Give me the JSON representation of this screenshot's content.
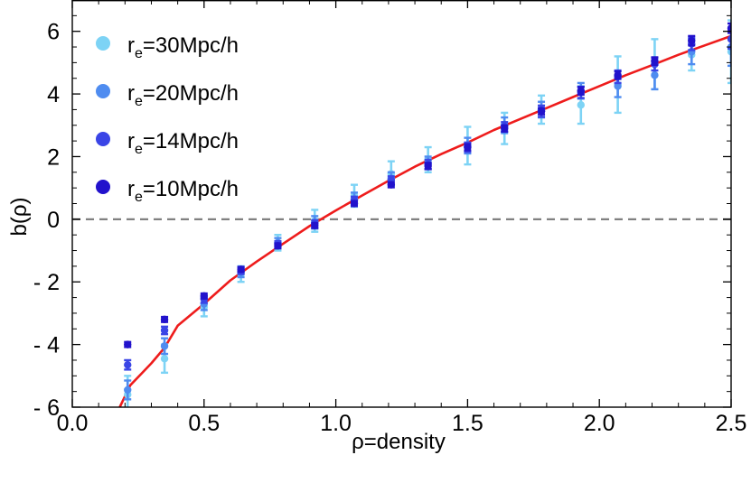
{
  "chart_data": {
    "type": "scatter",
    "xlabel": "ρ=density",
    "ylabel": "b(ρ)",
    "xlim": [
      0.0,
      2.5
    ],
    "ylim": [
      -6,
      7
    ],
    "xticks": [
      {
        "value": 0.0,
        "label": "0.0"
      },
      {
        "value": 0.5,
        "label": "0.5"
      },
      {
        "value": 1.0,
        "label": "1.0"
      },
      {
        "value": 1.5,
        "label": "1.5"
      },
      {
        "value": 2.0,
        "label": "2.0"
      },
      {
        "value": 2.5,
        "label": "2.5"
      }
    ],
    "yticks": [
      {
        "value": 6,
        "label": "6"
      },
      {
        "value": 4,
        "label": "4"
      },
      {
        "value": 2,
        "label": "2"
      },
      {
        "value": 0,
        "label": "0"
      },
      {
        "value": -2,
        "label": "- 2"
      },
      {
        "value": -4,
        "label": "- 4"
      },
      {
        "value": -6,
        "label": "- 6"
      }
    ],
    "reference_line": {
      "y": 0,
      "style": "dashed",
      "color": "#808080"
    },
    "colors": {
      "fit": "#ee1c1c",
      "s30": "#7dd3f5",
      "s20": "#4f8cf0",
      "s14": "#3a45e6",
      "s10": "#2212cc",
      "ref": "#808080"
    },
    "legend_position": "top-left",
    "series": [
      {
        "name": "r_e=30Mpc/h",
        "legend": {
          "r": "r",
          "sub": "e",
          "rest": "=30Mpc/h"
        },
        "color": "#7dd3f5",
        "x": [
          0.21,
          0.35,
          0.5,
          0.64,
          0.78,
          0.92,
          1.07,
          1.21,
          1.35,
          1.5,
          1.64,
          1.78,
          1.93,
          2.07,
          2.21,
          2.35,
          2.5
        ],
        "y": [
          -5.6,
          -4.45,
          -2.8,
          -1.75,
          -0.75,
          -0.05,
          0.75,
          1.45,
          1.9,
          2.35,
          2.9,
          3.5,
          3.65,
          4.3,
          4.95,
          5.25,
          5.35
        ],
        "err": [
          0.6,
          0.45,
          0.3,
          0.25,
          0.25,
          0.35,
          0.35,
          0.4,
          0.4,
          0.6,
          0.5,
          0.45,
          0.6,
          0.9,
          0.8,
          0.5,
          1.0
        ]
      },
      {
        "name": "r_e=20Mpc/h",
        "legend": {
          "r": "r",
          "sub": "e",
          "rest": "=20Mpc/h"
        },
        "color": "#4f8cf0",
        "x": [
          0.21,
          0.35,
          0.5,
          0.64,
          0.78,
          0.92,
          1.07,
          1.21,
          1.35,
          1.5,
          1.64,
          1.78,
          1.93,
          2.07,
          2.21,
          2.35,
          2.5
        ],
        "y": [
          -5.45,
          -4.05,
          -2.7,
          -1.7,
          -0.75,
          -0.1,
          0.65,
          1.3,
          1.8,
          2.35,
          3.0,
          3.5,
          4.1,
          4.25,
          4.6,
          5.35,
          5.5
        ],
        "err": [
          0.3,
          0.25,
          0.2,
          0.15,
          0.15,
          0.2,
          0.2,
          0.2,
          0.2,
          0.25,
          0.25,
          0.25,
          0.25,
          0.35,
          0.45,
          0.4,
          0.6
        ]
      },
      {
        "name": "r_e=14Mpc/h",
        "legend": {
          "r": "r",
          "sub": "e",
          "rest": "=14Mpc/h"
        },
        "color": "#3a45e6",
        "x": [
          0.21,
          0.35,
          0.5,
          0.64,
          0.78,
          0.92,
          1.07,
          1.21,
          1.35,
          1.5,
          1.64,
          1.78,
          1.93,
          2.07,
          2.21,
          2.35,
          2.5
        ],
        "y": [
          -4.65,
          -3.55,
          -2.55,
          -1.65,
          -0.8,
          -0.15,
          0.6,
          1.25,
          1.75,
          2.3,
          2.95,
          3.45,
          4.05,
          4.55,
          4.95,
          5.6,
          5.75
        ],
        "err": [
          0.15,
          0.12,
          0.12,
          0.1,
          0.1,
          0.12,
          0.12,
          0.12,
          0.15,
          0.15,
          0.15,
          0.18,
          0.18,
          0.2,
          0.2,
          0.2,
          0.3
        ]
      },
      {
        "name": "r_e=10Mpc/h",
        "legend": {
          "r": "r",
          "sub": "e",
          "rest": "=10Mpc/h"
        },
        "color": "#2212cc",
        "x": [
          0.21,
          0.35,
          0.5,
          0.64,
          0.78,
          0.92,
          1.07,
          1.21,
          1.35,
          1.5,
          1.64,
          1.78,
          1.93,
          2.07,
          2.21,
          2.35,
          2.5
        ],
        "y": [
          -4.0,
          -3.2,
          -2.45,
          -1.6,
          -0.85,
          -0.2,
          0.5,
          1.1,
          1.7,
          2.3,
          2.9,
          3.45,
          4.1,
          4.6,
          5.05,
          5.7,
          6.1
        ],
        "err": [
          0.08,
          0.08,
          0.08,
          0.08,
          0.08,
          0.08,
          0.08,
          0.08,
          0.1,
          0.1,
          0.1,
          0.1,
          0.12,
          0.12,
          0.12,
          0.15,
          0.15
        ]
      }
    ],
    "fit_line": {
      "name": "fit",
      "color": "#ee1c1c",
      "x": [
        0.18,
        0.22,
        0.26,
        0.3,
        0.35,
        0.4,
        0.5,
        0.6,
        0.7,
        0.8,
        0.9,
        1.0,
        1.1,
        1.2,
        1.3,
        1.4,
        1.5,
        1.6,
        1.7,
        1.8,
        1.9,
        2.0,
        2.1,
        2.2,
        2.3,
        2.4,
        2.5
      ],
      "y": [
        -6.0,
        -5.3,
        -4.95,
        -4.6,
        -4.1,
        -3.4,
        -2.7,
        -1.95,
        -1.35,
        -0.78,
        -0.22,
        0.28,
        0.76,
        1.23,
        1.68,
        2.08,
        2.45,
        2.85,
        3.2,
        3.55,
        3.9,
        4.25,
        4.6,
        4.92,
        5.25,
        5.55,
        5.85
      ]
    }
  }
}
